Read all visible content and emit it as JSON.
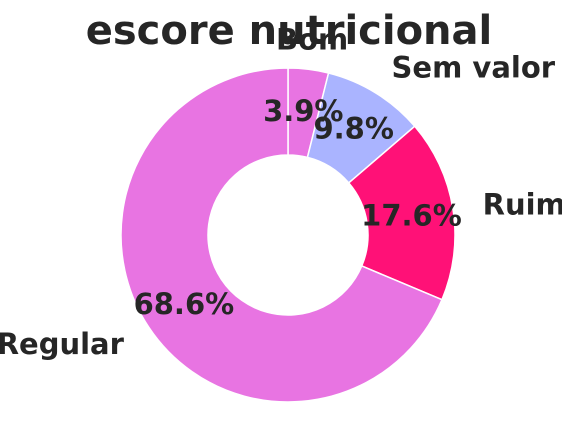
{
  "chart_data": {
    "type": "pie",
    "title": "escore nutricional",
    "donut": true,
    "start": "top",
    "direction": "clockwise",
    "slices": [
      {
        "label": "Bom",
        "value": 3.9,
        "pct_label": "3.9%",
        "color": "#e874e2"
      },
      {
        "label": "Sem valor",
        "value": 9.8,
        "pct_label": "9.8%",
        "color": "#aab4ff"
      },
      {
        "label": "Ruim",
        "value": 17.6,
        "pct_label": "17.6%",
        "color": "#ff1177"
      },
      {
        "label": "Regular",
        "value": 68.6,
        "pct_label": "68.6%",
        "color": "#e874e2"
      }
    ]
  }
}
